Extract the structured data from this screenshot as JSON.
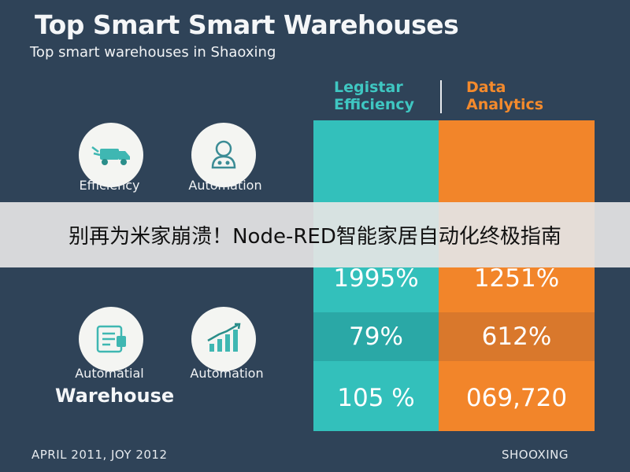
{
  "header": {
    "title": "Top Smart Smart Warehouses",
    "subtitle": "Top smart warehouses in Shaoxing"
  },
  "columns": {
    "left": {
      "label_line1": "Legistar",
      "label_line2": "Efficiency",
      "color": "#33c0bb"
    },
    "right": {
      "label_line1": "Data",
      "label_line2": "Analytics",
      "color": "#f2852a"
    }
  },
  "icons": [
    {
      "name": "truck-icon",
      "label": "Efficiency"
    },
    {
      "name": "robot-icon",
      "label": "Automation"
    },
    {
      "name": "document-icon",
      "label": "Automatial"
    },
    {
      "name": "bar-chart-icon",
      "label": "Automation"
    }
  ],
  "warehouse_label": "Warehouse",
  "rows": [
    {
      "left": "1995%",
      "right": "1251%"
    },
    {
      "left": "79%",
      "right": "612%"
    },
    {
      "left": "105 %",
      "right": "069,720"
    }
  ],
  "footer": {
    "left": "APRIL 2011, JOY 2012",
    "right": "SHOOXING"
  },
  "banner": {
    "text": "别再为米家崩溃！Node-RED智能家居自动化终极指南"
  }
}
